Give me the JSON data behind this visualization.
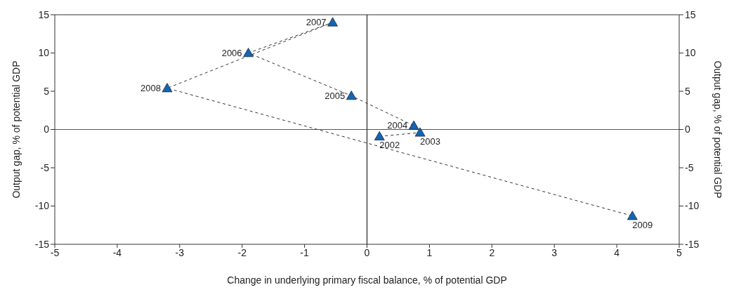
{
  "chart_data": {
    "type": "scatter",
    "xlabel": "Change in underlying primary fiscal balance, % of potential GDP",
    "ylabel": "Output gap, % of potential GDP",
    "y2label": "Output gap, % of potential GDP",
    "x": [
      0.2,
      0.85,
      0.75,
      -0.25,
      -1.9,
      -0.55,
      -3.2,
      4.25
    ],
    "series": [
      {
        "type": "line",
        "color": "#333333",
        "line_style": "dashed",
        "marker": "none",
        "values": [
          -0.9,
          -0.4,
          0.5,
          4.4,
          10,
          14,
          5.4,
          -11.3
        ]
      },
      {
        "color": "#1565b0",
        "marker": "triangle",
        "values": [
          -0.9,
          -0.4,
          0.5,
          4.4,
          10,
          14,
          5.4,
          -11.3
        ]
      }
    ],
    "annotations": [
      {
        "text": "2002",
        "x": 0.2,
        "y": -0.9
      },
      {
        "text": "2003",
        "x": 0.85,
        "y": -0.4
      },
      {
        "text": "2004",
        "x": 0.75,
        "y": 0.5
      },
      {
        "text": "2005",
        "x": -0.25,
        "y": 4.4
      },
      {
        "text": "2006",
        "x": -1.9,
        "y": 10
      },
      {
        "text": "2007",
        "x": -0.55,
        "y": 14
      },
      {
        "text": "2008",
        "x": -3.2,
        "y": 5.4
      },
      {
        "text": "2009",
        "x": 4.25,
        "y": -11.3
      }
    ],
    "xlim": [
      -5,
      5
    ],
    "xticks": [
      -5,
      -4,
      -3,
      -2,
      -1,
      0,
      1,
      2,
      3,
      4,
      5
    ],
    "ylim": [
      -15,
      15
    ],
    "yticks": [
      -15,
      -10,
      -5,
      0,
      5,
      10,
      15
    ],
    "y2lim": [
      -15,
      15
    ],
    "y2ticks": [
      -15,
      -10,
      -5,
      0,
      5,
      10,
      15
    ],
    "ref_lines": [
      {
        "axis": "x",
        "value": 0,
        "color": "#222222"
      },
      {
        "axis": "y",
        "value": 0,
        "color": "#555555"
      }
    ],
    "grid": false,
    "legend": false
  }
}
